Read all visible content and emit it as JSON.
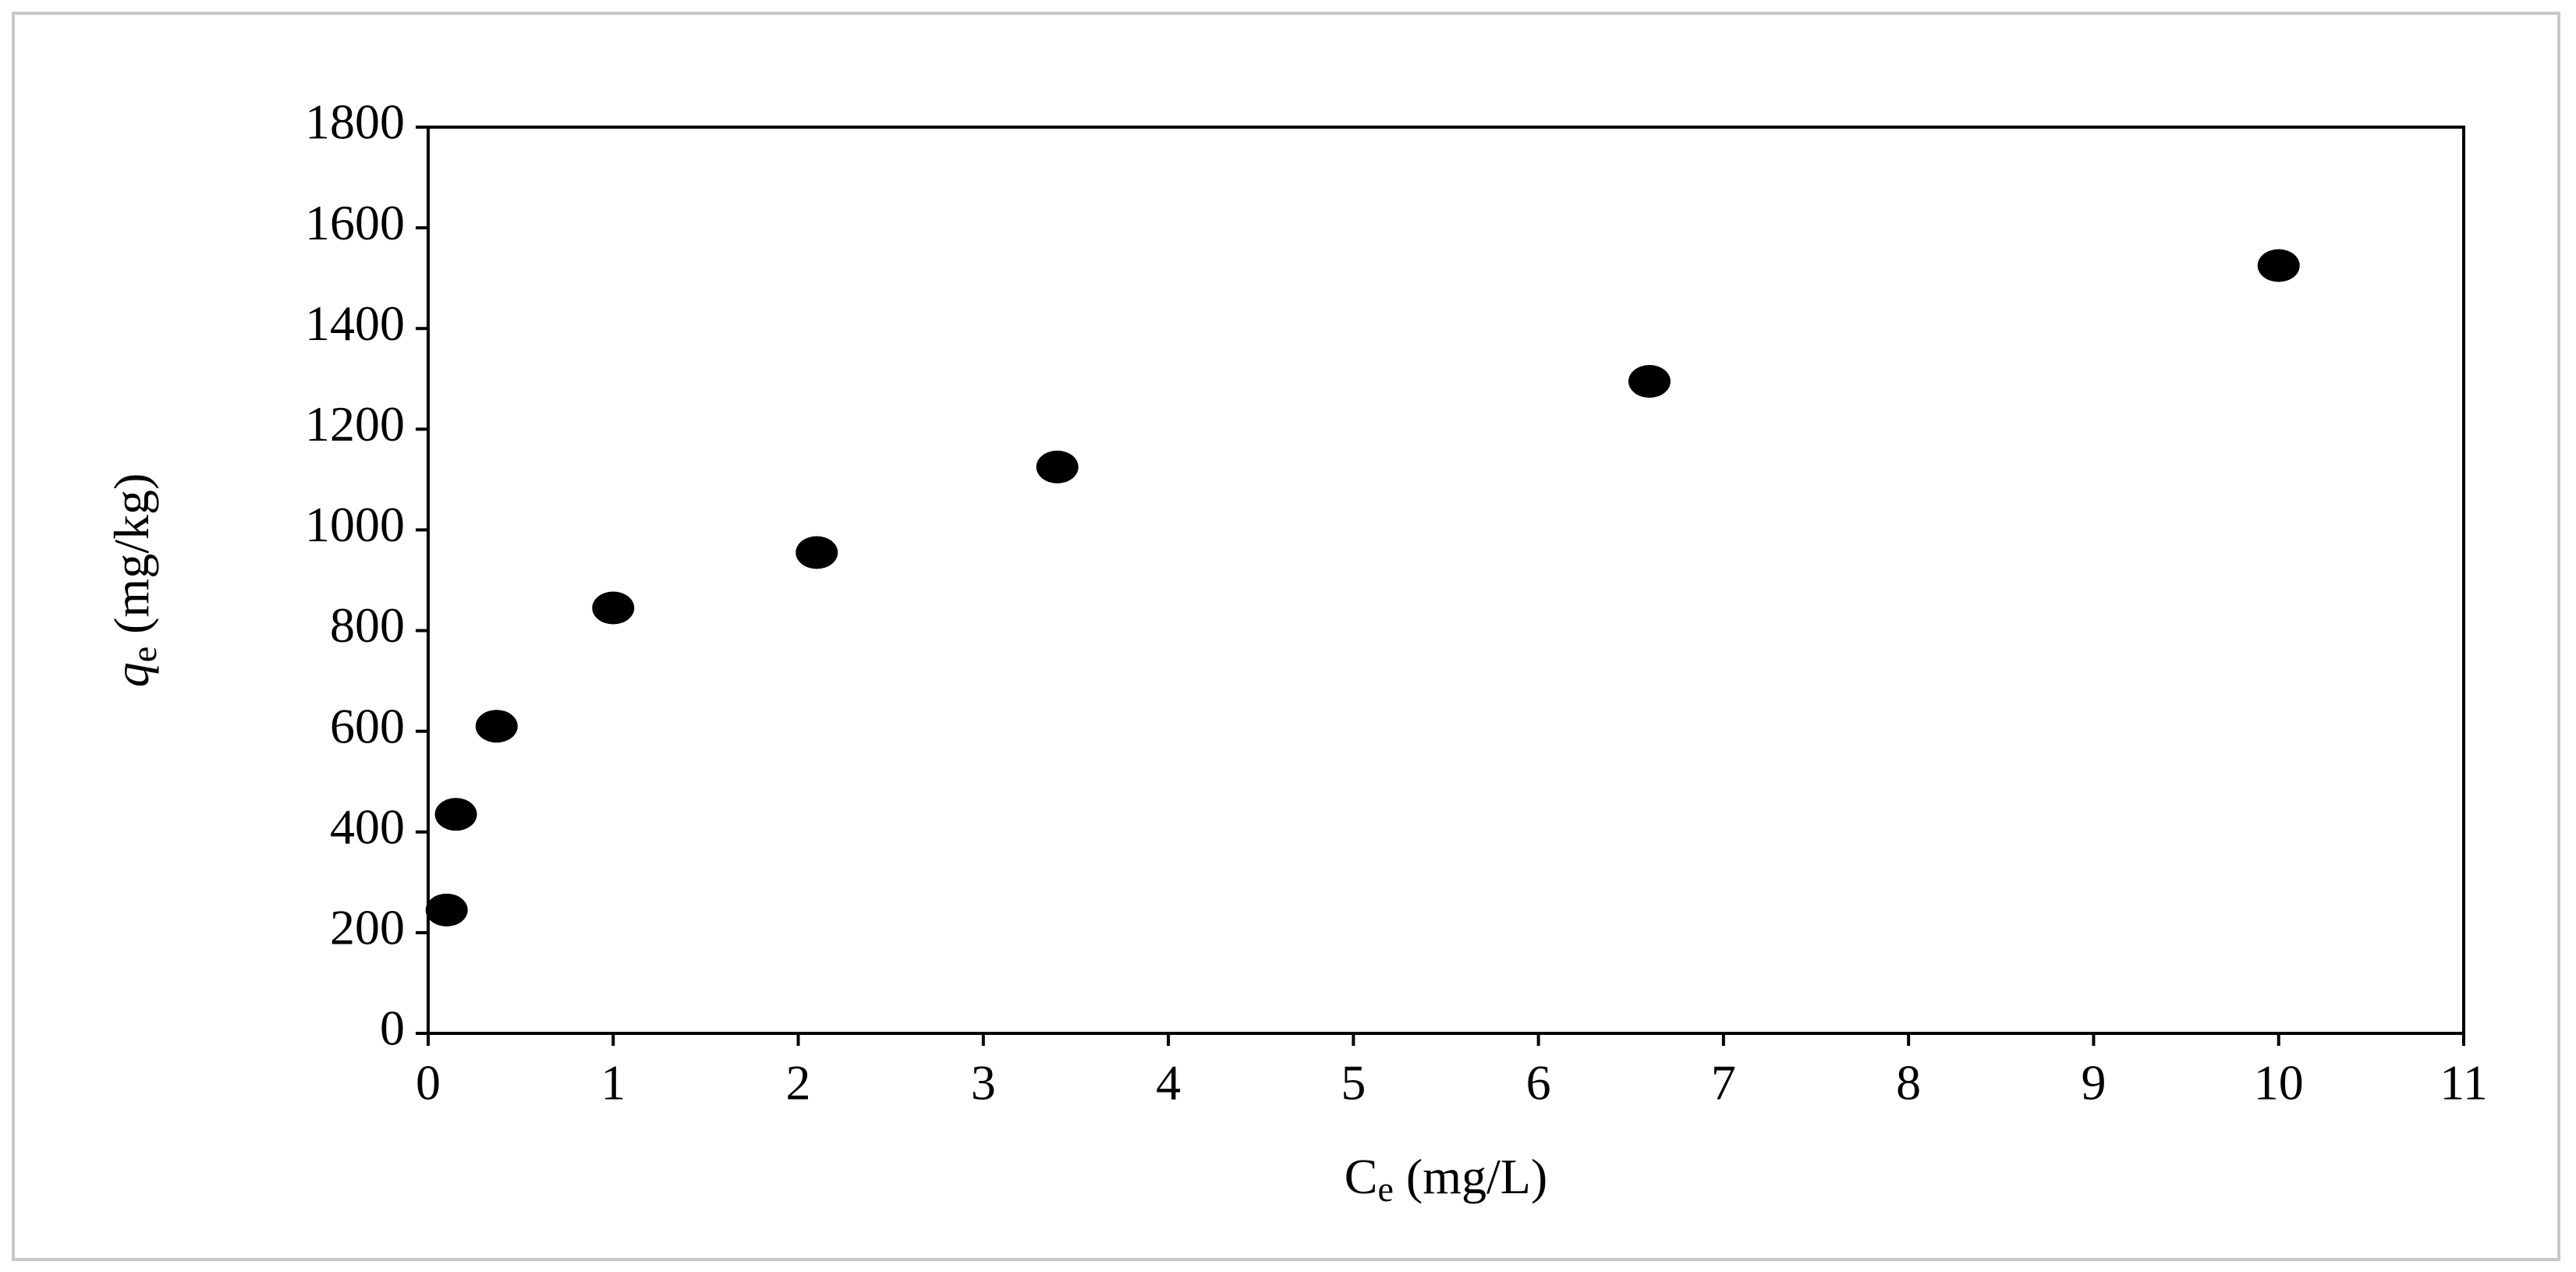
{
  "chart_data": {
    "type": "scatter",
    "xlabel": [
      "C",
      "e",
      " (mg/L)"
    ],
    "ylabel": [
      "q",
      "e",
      " (mg/kg)"
    ],
    "x": [
      0.1,
      0.15,
      0.37,
      1.0,
      2.1,
      3.4,
      6.6,
      10.0
    ],
    "values": [
      245,
      435,
      610,
      845,
      955,
      1125,
      1295,
      1525
    ],
    "color": "#000000",
    "xlim": [
      0,
      11
    ],
    "xticks": [
      0,
      1,
      2,
      3,
      4,
      5,
      6,
      7,
      8,
      9,
      10,
      11
    ],
    "ylim": [
      0,
      1800
    ],
    "yticks": [
      0,
      200,
      400,
      600,
      800,
      1000,
      1200,
      1400,
      1600,
      1800
    ],
    "grid": false
  }
}
